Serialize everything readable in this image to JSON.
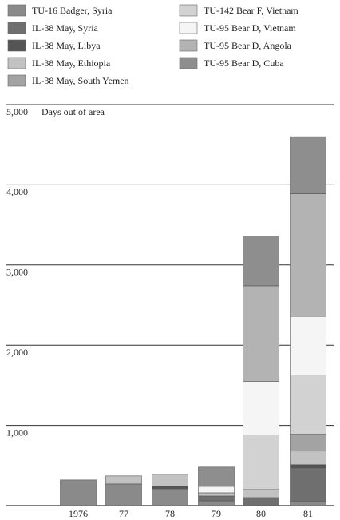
{
  "chart_data": {
    "type": "bar",
    "stacked": true,
    "y_label": "Days out of area",
    "categories": [
      "1976",
      "77",
      "78",
      "79",
      "80",
      "81"
    ],
    "series": [
      {
        "name": "TU-16 Badger, Syria",
        "color": "#8a8a8a",
        "values": [
          320,
          270,
          210,
          60,
          0,
          50
        ]
      },
      {
        "name": "IL-38 May, Syria",
        "color": "#6f6f6f",
        "values": [
          0,
          0,
          0,
          60,
          100,
          420
        ]
      },
      {
        "name": "IL-38 May, Libya",
        "color": "#555555",
        "values": [
          0,
          0,
          30,
          0,
          0,
          40
        ]
      },
      {
        "name": "IL-38 May, Ethiopia",
        "color": "#c2c2c2",
        "values": [
          0,
          100,
          150,
          40,
          100,
          170
        ]
      },
      {
        "name": "IL-38 May, South Yemen",
        "color": "#a3a3a3",
        "values": [
          0,
          0,
          0,
          0,
          0,
          210
        ]
      },
      {
        "name": "TU-142 Bear F, Vietnam",
        "color": "#d2d2d2",
        "values": [
          0,
          0,
          0,
          0,
          680,
          740
        ]
      },
      {
        "name": "TU-95 Bear D, Vietnam",
        "color": "#f5f5f5",
        "values": [
          0,
          0,
          0,
          80,
          670,
          730
        ]
      },
      {
        "name": "TU-95 Bear D, Angola",
        "color": "#b3b3b3",
        "values": [
          0,
          0,
          0,
          0,
          1190,
          1530
        ]
      },
      {
        "name": "TU-95 Bear D, Cuba",
        "color": "#8e8e8e",
        "values": [
          0,
          0,
          0,
          240,
          620,
          710
        ]
      }
    ],
    "ylim": [
      0,
      5000
    ],
    "yticks": [
      {
        "value": 1000,
        "label": "1,000"
      },
      {
        "value": 2000,
        "label": "2,000"
      },
      {
        "value": 3000,
        "label": "3,000"
      },
      {
        "value": 4000,
        "label": "4,000"
      },
      {
        "value": 5000,
        "label": "5,000"
      }
    ],
    "grid": true
  }
}
